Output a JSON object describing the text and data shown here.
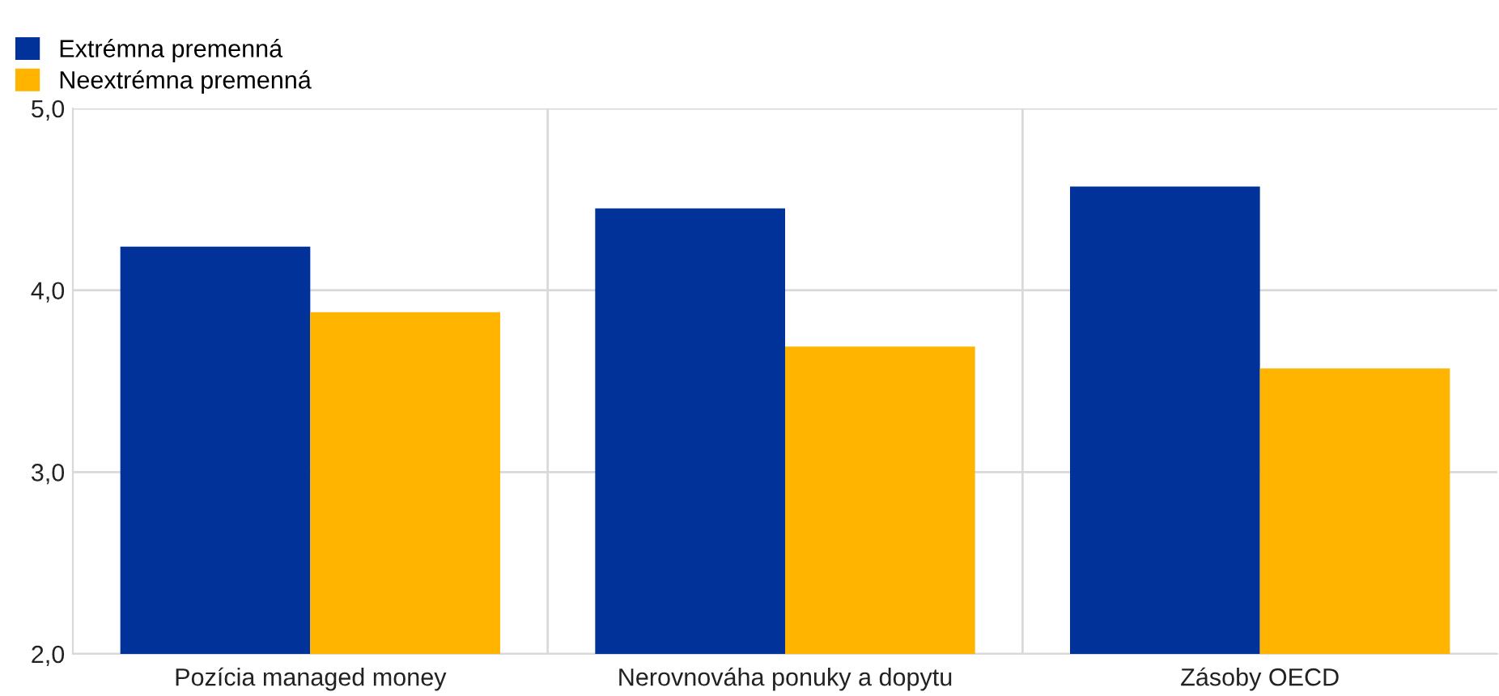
{
  "chart_data": {
    "type": "bar",
    "categories": [
      "Pozícia managed money",
      "Nerovnováha ponuky a dopytu",
      "Zásoby OECD"
    ],
    "series": [
      {
        "name": "Extrémna premenná",
        "color": "#003299",
        "values": [
          4.24,
          4.45,
          4.57
        ]
      },
      {
        "name": "Neextrémna premenná",
        "color": "#ffb400",
        "values": [
          3.88,
          3.69,
          3.57
        ]
      }
    ],
    "ylim": [
      2,
      5
    ],
    "yticks": [
      {
        "value": 2,
        "label": "2,0"
      },
      {
        "value": 3,
        "label": "3,0"
      },
      {
        "value": 4,
        "label": "4,0"
      },
      {
        "value": 5,
        "label": "5,0"
      }
    ],
    "grid": true,
    "legend": "top left"
  }
}
